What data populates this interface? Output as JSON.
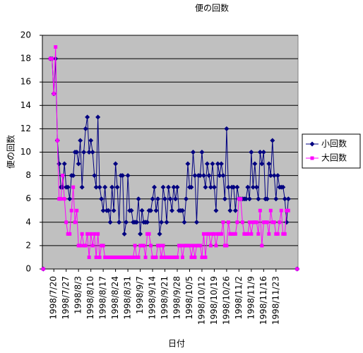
{
  "chart_data": {
    "type": "line",
    "title": "便の回数",
    "x_label": "日付",
    "y_label": "便の回数",
    "categories": [
      null,
      null,
      null,
      null,
      null,
      null,
      "1998/7/20",
      null,
      null,
      null,
      null,
      null,
      null,
      "1998/7/27",
      null,
      null,
      null,
      null,
      null,
      null,
      "1998/8/3",
      null,
      null,
      null,
      null,
      null,
      null,
      "1998/8/10",
      null,
      null,
      null,
      null,
      null,
      null,
      "1998/8/17",
      null,
      null,
      null,
      null,
      null,
      null,
      "1998/8/24",
      null,
      null,
      null,
      null,
      null,
      null,
      "1998/8/31",
      null,
      null,
      null,
      null,
      null,
      null,
      "1998/9/7",
      null,
      null,
      null,
      null,
      null,
      null,
      "1998/9/14",
      null,
      null,
      null,
      null,
      null,
      null,
      "1998/9/21",
      null,
      null,
      null,
      null,
      null,
      null,
      "1998/9/28",
      null,
      null,
      null,
      null,
      null,
      null,
      "1998/10/5",
      null,
      null,
      null,
      null,
      null,
      null,
      "1998/10/12",
      null,
      null,
      null,
      null,
      null,
      null,
      "1998/10/19",
      null,
      null,
      null,
      null,
      null,
      null,
      "1998/10/26",
      null,
      null,
      null,
      null,
      null,
      null,
      "1998/11/2",
      null,
      null,
      null,
      null,
      null,
      null,
      "1998/11/9",
      null,
      null,
      null,
      null,
      null,
      null,
      "1998/11/16",
      null,
      null,
      null,
      null,
      null,
      null,
      "1998/11/23",
      null,
      null,
      null,
      null,
      null,
      null,
      null,
      null,
      null,
      null,
      null,
      null
    ],
    "series": [
      {
        "name": "小回数",
        "color": "#000080",
        "marker": "diamond",
        "values": [
          0,
          null,
          null,
          null,
          18,
          18,
          15,
          18,
          11,
          9,
          7,
          7,
          9,
          7,
          7,
          6,
          8,
          8,
          10,
          10,
          9,
          11,
          7,
          10,
          12,
          13,
          10,
          11,
          10,
          8,
          7,
          13,
          7,
          6,
          5,
          7,
          5,
          5,
          4,
          7,
          5,
          9,
          7,
          4,
          8,
          8,
          3,
          4,
          8,
          5,
          5,
          4,
          4,
          4,
          6,
          3,
          5,
          4,
          4,
          4,
          5,
          5,
          6,
          7,
          5,
          6,
          3,
          4,
          7,
          6,
          4,
          7,
          6,
          5,
          7,
          6,
          7,
          5,
          5,
          5,
          4,
          6,
          9,
          7,
          7,
          10,
          8,
          4,
          8,
          8,
          10,
          8,
          7,
          9,
          8,
          7,
          9,
          7,
          5,
          9,
          8,
          9,
          8,
          6,
          12,
          7,
          5,
          7,
          7,
          5,
          7,
          6,
          6,
          6,
          6,
          6,
          7,
          6,
          10,
          7,
          9,
          7,
          6,
          10,
          9,
          10,
          6,
          6,
          9,
          8,
          11,
          8,
          6,
          8,
          7,
          7,
          7,
          6,
          4,
          6,
          null,
          null,
          null,
          null,
          0
        ]
      },
      {
        "name": "大回数",
        "color": "#ff00ff",
        "marker": "square",
        "values": [
          0,
          null,
          null,
          null,
          18,
          18,
          15,
          19,
          11,
          6,
          6,
          8,
          6,
          4,
          3,
          3,
          5,
          7,
          4,
          5,
          2,
          2,
          3,
          2,
          2,
          3,
          1,
          3,
          2,
          3,
          1,
          3,
          1,
          2,
          2,
          1,
          1,
          1,
          1,
          1,
          1,
          1,
          1,
          1,
          1,
          1,
          1,
          1,
          1,
          1,
          1,
          1,
          2,
          1,
          1,
          2,
          2,
          2,
          1,
          3,
          3,
          2,
          1,
          1,
          1,
          2,
          2,
          1,
          2,
          1,
          1,
          1,
          1,
          1,
          1,
          1,
          1,
          2,
          2,
          1,
          2,
          2,
          2,
          2,
          1,
          2,
          1,
          2,
          2,
          2,
          1,
          3,
          1,
          3,
          3,
          2,
          3,
          3,
          2,
          3,
          3,
          3,
          4,
          2,
          2,
          4,
          3,
          3,
          3,
          3,
          4,
          6,
          6,
          4,
          3,
          3,
          3,
          4,
          3,
          4,
          4,
          4,
          3,
          5,
          2,
          4,
          4,
          4,
          3,
          5,
          4,
          4,
          3,
          3,
          4,
          5,
          3,
          3,
          5,
          5,
          null,
          null,
          null,
          null,
          0
        ]
      }
    ],
    "ylim": [
      0,
      20
    ],
    "yticks": [
      0,
      2,
      4,
      6,
      8,
      10,
      12,
      14,
      16,
      18,
      20
    ],
    "grid": true,
    "legend": "right"
  }
}
